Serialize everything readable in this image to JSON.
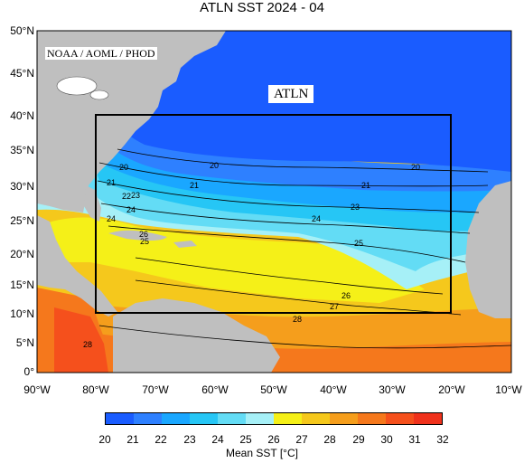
{
  "title": "ATLN SST  2024 - 04",
  "source_tag": "NOAA / AOML / PHOD",
  "region_label": "ATLN",
  "lat_labels": [
    "50°N",
    "45°N",
    "40°N",
    "35°N",
    "30°N",
    "25°N",
    "20°N",
    "15°N",
    "10°N",
    "5°N",
    "0°"
  ],
  "lon_labels": [
    "90°W",
    "80°W",
    "70°W",
    "60°W",
    "50°W",
    "40°W",
    "30°W",
    "20°W",
    "10°W"
  ],
  "contour_labels": [
    "20",
    "20",
    "20",
    "21",
    "21",
    "21",
    "22",
    "23",
    "23",
    "24",
    "24",
    "24",
    "25",
    "25",
    "26",
    "26",
    "27",
    "28",
    "28"
  ],
  "colorbar": {
    "ticks": [
      "20",
      "21",
      "22",
      "23",
      "24",
      "25",
      "26",
      "27",
      "28",
      "29",
      "30",
      "31",
      "32"
    ],
    "colors": [
      "#1a5cff",
      "#2e80ff",
      "#1aa7ff",
      "#26c6f5",
      "#63dcf5",
      "#a6f0f7",
      "#f5f018",
      "#f5c81c",
      "#f59e1c",
      "#f5781c",
      "#f5501c",
      "#f0321c"
    ],
    "label": "Mean SST [°C]"
  },
  "colors": {
    "land": "#bfbfbf",
    "deep_blue": "#1a5cff",
    "box": "#000000"
  }
}
